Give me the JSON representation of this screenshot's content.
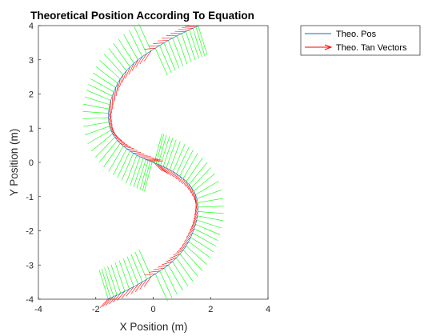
{
  "chart_data": {
    "type": "line",
    "title": "Theoretical Position According To Equation",
    "xlabel": "X Position (m)",
    "ylabel": "Y Position (m)",
    "xlim": [
      -4,
      4
    ],
    "ylim": [
      -4,
      4
    ],
    "xticks": [
      "-4",
      "-2",
      "0",
      "2",
      "4"
    ],
    "yticks": [
      "-4",
      "-3",
      "-2",
      "-1",
      "0",
      "1",
      "2",
      "3",
      "4"
    ],
    "grid": false,
    "legend_position": "outside-top-right",
    "series": [
      {
        "name": "Theo. Pos",
        "color": "#0072BD",
        "x": [
          1.6,
          1.2,
          0.6,
          0.0,
          -0.6,
          -1.1,
          -1.4,
          -1.55,
          -1.5,
          -1.2,
          -0.75,
          -0.3,
          0.0,
          0.3,
          0.75,
          1.2,
          1.5,
          1.55,
          1.4,
          1.1,
          0.6,
          0.0,
          -0.6,
          -1.2,
          -1.6
        ],
        "y": [
          4.0,
          3.85,
          3.6,
          3.3,
          2.95,
          2.5,
          2.0,
          1.5,
          1.0,
          0.6,
          0.3,
          0.1,
          0.0,
          -0.1,
          -0.3,
          -0.6,
          -1.0,
          -1.5,
          -2.0,
          -2.5,
          -2.95,
          -3.3,
          -3.6,
          -3.85,
          -4.0
        ]
      },
      {
        "name": "Theo. Tan Vectors",
        "color": "#FF0000",
        "kind": "quiver"
      },
      {
        "name": "",
        "color": "#00FF00",
        "kind": "quiver"
      }
    ]
  }
}
